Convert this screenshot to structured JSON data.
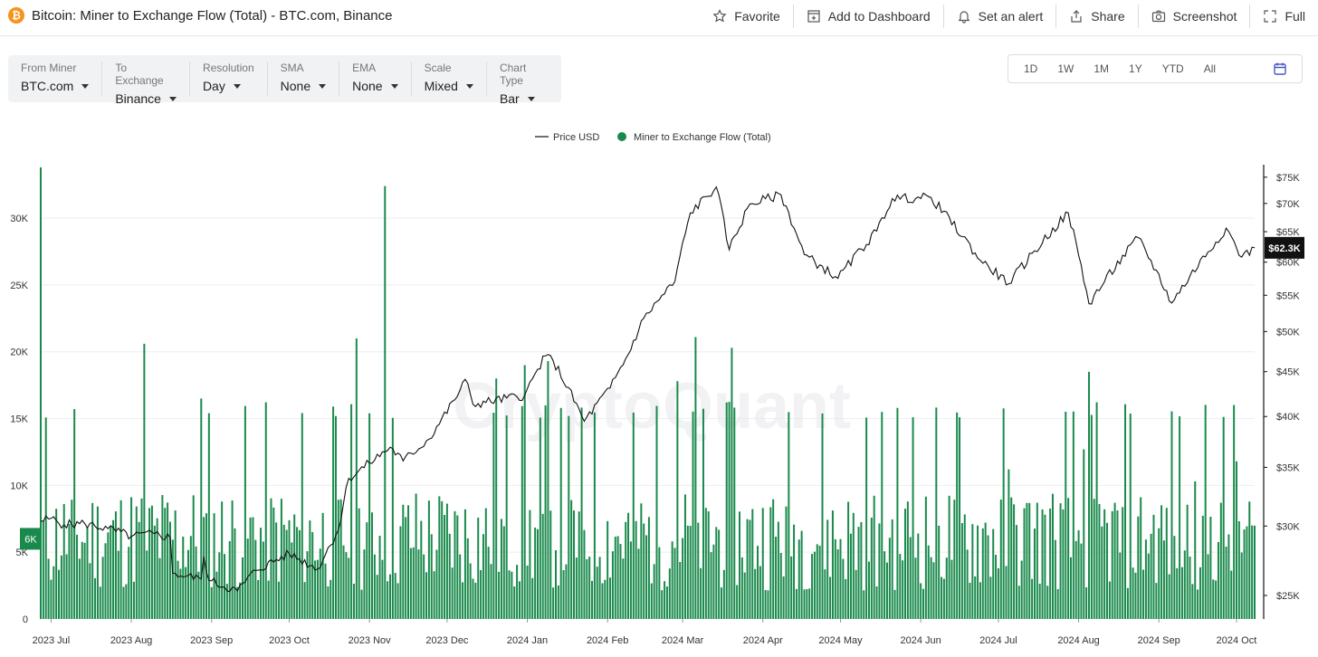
{
  "header": {
    "title": "Bitcoin: Miner to Exchange Flow (Total) - BTC.com, Binance",
    "logo_glyph": "₿",
    "actions": [
      {
        "label": "Favorite",
        "icon": "star-icon"
      },
      {
        "label": "Add to Dashboard",
        "icon": "dashboard-add-icon"
      },
      {
        "label": "Set an alert",
        "icon": "bell-icon"
      },
      {
        "label": "Share",
        "icon": "share-icon"
      },
      {
        "label": "Screenshot",
        "icon": "camera-icon"
      },
      {
        "label": "Full",
        "icon": "fullscreen-icon"
      }
    ]
  },
  "filters": [
    {
      "label": "From Miner",
      "value": "BTC.com"
    },
    {
      "label": "To Exchange",
      "value": "Binance"
    },
    {
      "label": "Resolution",
      "value": "Day"
    },
    {
      "label": "SMA",
      "value": "None"
    },
    {
      "label": "EMA",
      "value": "None"
    },
    {
      "label": "Scale",
      "value": "Mixed"
    },
    {
      "label": "Chart Type",
      "value": "Bar"
    }
  ],
  "ranges": [
    "1D",
    "1W",
    "1M",
    "1Y",
    "YTD",
    "All"
  ],
  "colors": {
    "bar": "#1a8a4c",
    "line": "#111111",
    "grid": "#eeeeee"
  },
  "chart_data": {
    "type": "bar",
    "watermark": "CryptoQuant",
    "legend": [
      "Price USD",
      "Miner to Exchange Flow (Total)"
    ],
    "legend_placement": "top-center",
    "x_ticks": [
      "2023 Jul",
      "2023 Aug",
      "2023 Sep",
      "2023 Oct",
      "2023 Nov",
      "2023 Dec",
      "2024 Jan",
      "2024 Feb",
      "2024 Mar",
      "2024 Apr",
      "2024 May",
      "2024 Jun",
      "2024 Jul",
      "2024 Aug",
      "2024 Sep",
      "2024 Oct"
    ],
    "x_range": [
      "2023-06-27",
      "2024-10-08"
    ],
    "left_axis": {
      "ticks": [
        "0",
        "5K",
        "10K",
        "15K",
        "20K",
        "25K",
        "30K"
      ],
      "range": [
        0,
        34000
      ]
    },
    "right_axis": {
      "scale": "log",
      "ticks": [
        "$25K",
        "$30K",
        "$35K",
        "$40K",
        "$45K",
        "$50K",
        "$55K",
        "$60K",
        "$65K",
        "$70K",
        "$75K"
      ],
      "range": [
        23500,
        77500
      ]
    },
    "left_marker": "6K",
    "left_marker_value": 6000,
    "right_marker": "$62.3K",
    "right_marker_value": 62300,
    "grid": true,
    "flow_baseline": 6000,
    "flow_peaks": [
      {
        "date": "2023-06-27",
        "value": 33800
      },
      {
        "date": "2023-08-06",
        "value": 20600
      },
      {
        "date": "2023-08-28",
        "value": 16500
      },
      {
        "date": "2023-10-27",
        "value": 21000
      },
      {
        "date": "2023-11-07",
        "value": 32400
      },
      {
        "date": "2023-12-20",
        "value": 18000
      },
      {
        "date": "2023-12-31",
        "value": 19000
      },
      {
        "date": "2024-01-09",
        "value": 19300
      },
      {
        "date": "2024-02-28",
        "value": 17800
      },
      {
        "date": "2024-03-06",
        "value": 21100
      },
      {
        "date": "2024-03-20",
        "value": 20300
      },
      {
        "date": "2024-05-29",
        "value": 15100
      },
      {
        "date": "2024-07-05",
        "value": 11200
      },
      {
        "date": "2024-08-03",
        "value": 12700
      },
      {
        "date": "2024-08-05",
        "value": 18500
      },
      {
        "date": "2024-09-15",
        "value": 10300
      },
      {
        "date": "2024-10-01",
        "value": 11800
      },
      {
        "date": "2024-10-07",
        "value": 7000
      }
    ],
    "price_series": [
      {
        "date": "2023-06-27",
        "value": 30400
      },
      {
        "date": "2023-07-01",
        "value": 30600
      },
      {
        "date": "2023-07-06",
        "value": 30100
      },
      {
        "date": "2023-07-14",
        "value": 30200
      },
      {
        "date": "2023-07-23",
        "value": 29800
      },
      {
        "date": "2023-08-01",
        "value": 29200
      },
      {
        "date": "2023-08-10",
        "value": 29400
      },
      {
        "date": "2023-08-16",
        "value": 29100
      },
      {
        "date": "2023-08-17",
        "value": 26500
      },
      {
        "date": "2023-08-28",
        "value": 26100
      },
      {
        "date": "2023-08-29",
        "value": 27700
      },
      {
        "date": "2023-08-31",
        "value": 26000
      },
      {
        "date": "2023-09-11",
        "value": 25300
      },
      {
        "date": "2023-09-18",
        "value": 26700
      },
      {
        "date": "2023-10-01",
        "value": 27900
      },
      {
        "date": "2023-10-12",
        "value": 26800
      },
      {
        "date": "2023-10-20",
        "value": 29700
      },
      {
        "date": "2023-10-24",
        "value": 34000
      },
      {
        "date": "2023-11-01",
        "value": 35400
      },
      {
        "date": "2023-11-09",
        "value": 36900
      },
      {
        "date": "2023-11-14",
        "value": 35600
      },
      {
        "date": "2023-11-24",
        "value": 37700
      },
      {
        "date": "2023-12-04",
        "value": 41800
      },
      {
        "date": "2023-12-08",
        "value": 44100
      },
      {
        "date": "2023-12-11",
        "value": 41300
      },
      {
        "date": "2023-12-31",
        "value": 42300
      },
      {
        "date": "2024-01-08",
        "value": 46900
      },
      {
        "date": "2024-01-11",
        "value": 46300
      },
      {
        "date": "2024-01-23",
        "value": 39500
      },
      {
        "date": "2024-02-02",
        "value": 43100
      },
      {
        "date": "2024-02-09",
        "value": 47100
      },
      {
        "date": "2024-02-15",
        "value": 51800
      },
      {
        "date": "2024-02-27",
        "value": 57000
      },
      {
        "date": "2024-03-04",
        "value": 68300
      },
      {
        "date": "2024-03-14",
        "value": 73100
      },
      {
        "date": "2024-03-19",
        "value": 62000
      },
      {
        "date": "2024-03-27",
        "value": 69900
      },
      {
        "date": "2024-04-08",
        "value": 71600
      },
      {
        "date": "2024-04-17",
        "value": 61200
      },
      {
        "date": "2024-04-30",
        "value": 57500
      },
      {
        "date": "2024-05-15",
        "value": 65100
      },
      {
        "date": "2024-05-21",
        "value": 70900
      },
      {
        "date": "2024-06-05",
        "value": 71100
      },
      {
        "date": "2024-06-24",
        "value": 60300
      },
      {
        "date": "2024-07-05",
        "value": 56700
      },
      {
        "date": "2024-07-28",
        "value": 68300
      },
      {
        "date": "2024-08-05",
        "value": 53800
      },
      {
        "date": "2024-08-24",
        "value": 64000
      },
      {
        "date": "2024-09-06",
        "value": 53900
      },
      {
        "date": "2024-09-27",
        "value": 65600
      },
      {
        "date": "2024-10-03",
        "value": 60800
      },
      {
        "date": "2024-10-08",
        "value": 62300
      }
    ]
  }
}
